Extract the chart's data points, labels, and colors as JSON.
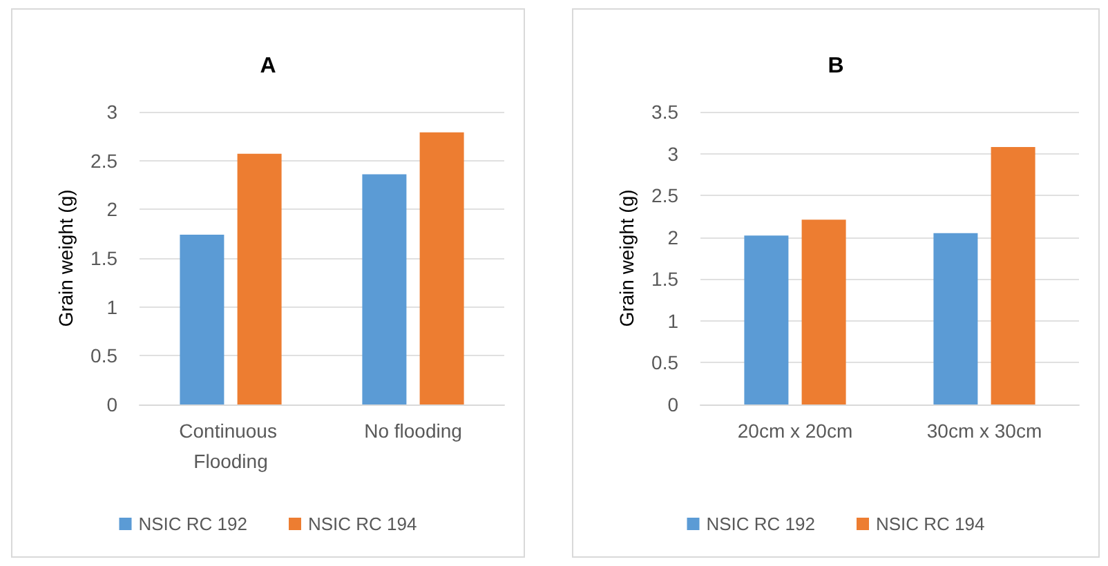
{
  "chart_data": [
    {
      "type": "bar",
      "title": "A",
      "ylabel": "Grain weight (g)",
      "categories": [
        "Continuous Flooding",
        "No flooding"
      ],
      "series": [
        {
          "name": "NSIC RC 192",
          "color": "#5b9bd5",
          "values": [
            1.74,
            2.36
          ]
        },
        {
          "name": "NSIC RC 194",
          "color": "#ed7d31",
          "values": [
            2.57,
            2.79
          ]
        }
      ],
      "ylim": [
        0,
        3
      ],
      "yticks": [
        0,
        0.5,
        1,
        1.5,
        2,
        2.5,
        3
      ],
      "grid": "y",
      "legend": "bottom"
    },
    {
      "type": "bar",
      "title": "B",
      "ylabel": "Grain weight (g)",
      "categories": [
        "20cm x 20cm",
        "30cm x 30cm"
      ],
      "series": [
        {
          "name": "NSIC RC 192",
          "color": "#5b9bd5",
          "values": [
            2.02,
            2.05
          ]
        },
        {
          "name": "NSIC RC 194",
          "color": "#ed7d31",
          "values": [
            2.21,
            3.08
          ]
        }
      ],
      "ylim": [
        0,
        3.5
      ],
      "yticks": [
        0,
        0.5,
        1,
        1.5,
        2,
        2.5,
        3,
        3.5
      ],
      "grid": "y",
      "legend": "bottom"
    }
  ]
}
